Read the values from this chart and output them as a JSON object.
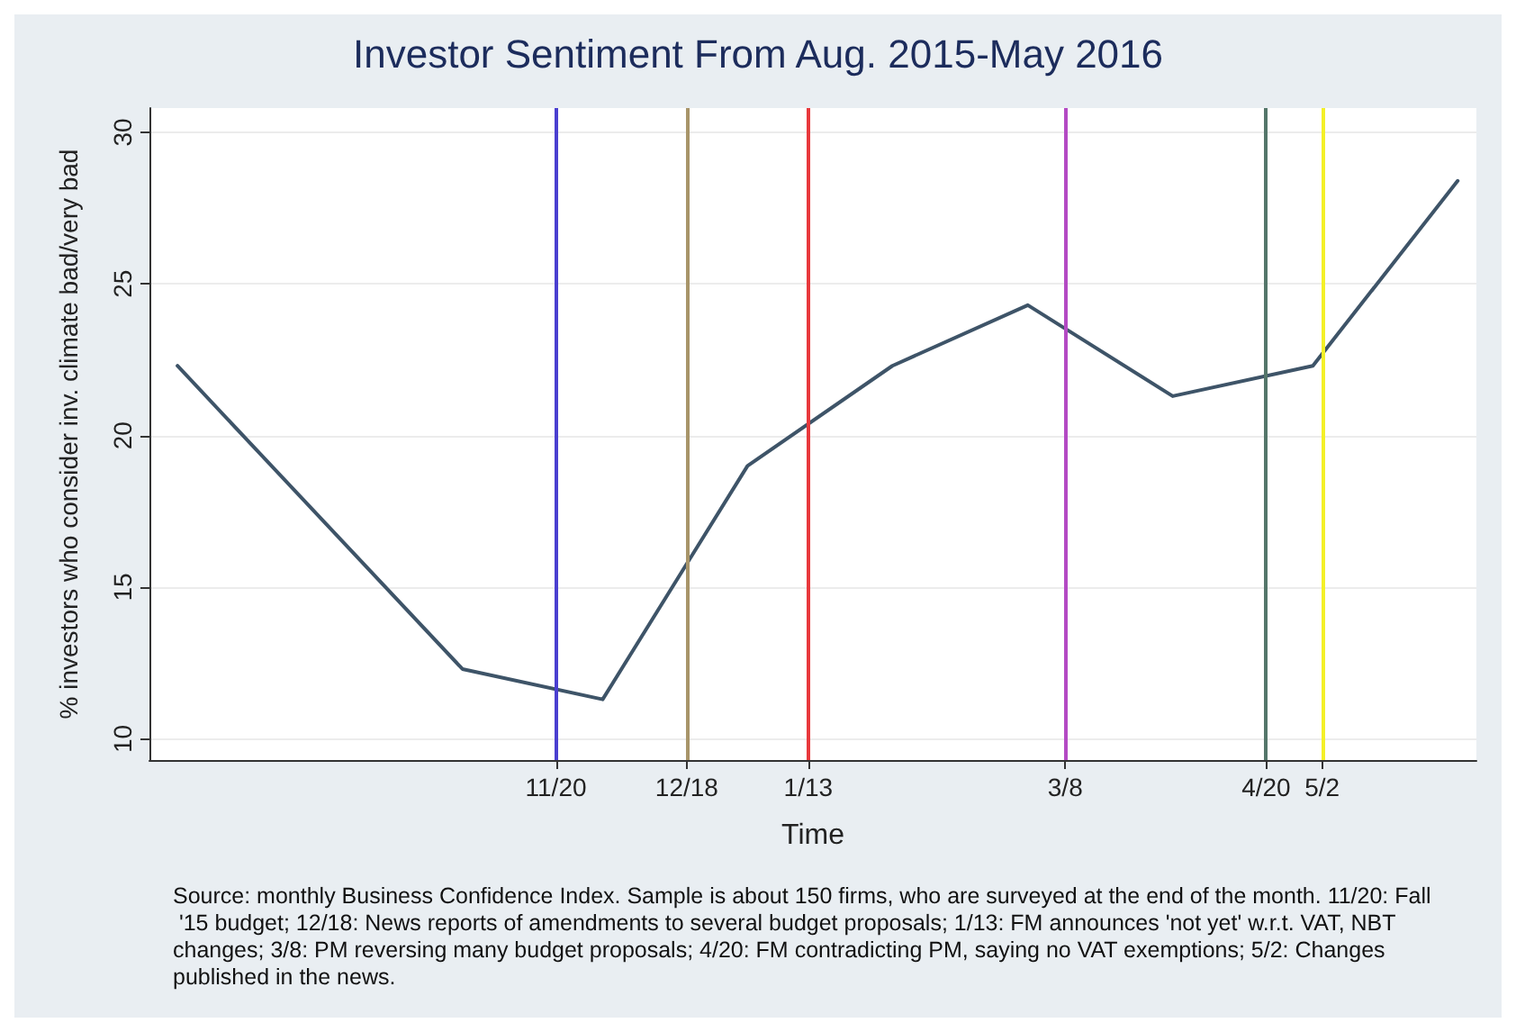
{
  "chart_data": {
    "type": "line",
    "title": "Investor Sentiment From Aug. 2015-May 2016",
    "xlabel": "Time",
    "ylabel": "% investors who consider inv. climate bad/very bad",
    "x": [
      "2015-08-31",
      "2015-10-31",
      "2015-11-30",
      "2015-12-31",
      "2016-01-31",
      "2016-02-29",
      "2016-03-31",
      "2016-04-30",
      "2016-05-31"
    ],
    "series": [
      {
        "color": "#3e5468",
        "values": [
          22.3,
          12.3,
          11.3,
          19.0,
          22.3,
          24.3,
          21.3,
          22.3,
          28.4
        ]
      }
    ],
    "xlim": [
      "2015-08-25",
      "2016-06-04"
    ],
    "xticks": [
      {
        "value": "2015-11-20",
        "label": "11/20"
      },
      {
        "value": "2015-12-18",
        "label": "12/18"
      },
      {
        "value": "2016-01-13",
        "label": "1/13"
      },
      {
        "value": "2016-03-08",
        "label": "3/8"
      },
      {
        "value": "2016-04-20",
        "label": "4/20"
      },
      {
        "value": "2016-05-02",
        "label": "5/2"
      }
    ],
    "ylim": [
      9.3,
      30.8
    ],
    "yticks": [
      10,
      15,
      20,
      25,
      30
    ],
    "grid": "y",
    "marker": "none",
    "line_style": "solid",
    "ref_lines": [
      {
        "axis": "x",
        "value": "2015-11-20",
        "color": "#4a3fd0"
      },
      {
        "axis": "x",
        "value": "2015-12-18",
        "color": "#a8956a"
      },
      {
        "axis": "x",
        "value": "2016-01-13",
        "color": "#e8383c"
      },
      {
        "axis": "x",
        "value": "2016-03-08",
        "color": "#b44ac4"
      },
      {
        "axis": "x",
        "value": "2016-04-20",
        "color": "#54766a"
      },
      {
        "axis": "x",
        "value": "2016-05-02",
        "color": "#f4f028"
      }
    ],
    "annotations": [
      "Source: monthly Business Confidence Index. Sample is about 150 firms, who are surveyed at the end of the month. 11/20: Fall '15 budget; 12/18: News reports of amendments to several budget proposals; 1/13: FM announces 'not yet' w.r.t. VAT, NBT changes; 3/8: PM reversing many budget proposals; 4/20: FM contradicting PM, saying no VAT exemptions; 5/2: Changes published in the news."
    ]
  }
}
